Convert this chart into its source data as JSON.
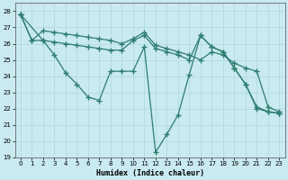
{
  "xlabel": "Humidex (Indice chaleur)",
  "bg_color": "#c8eaf0",
  "grid_color": "#b0d8d8",
  "line_color": "#2e7d6e",
  "marker": "+",
  "markersize": 4.0,
  "linewidth": 0.9,
  "xlim": [
    -0.5,
    23.5
  ],
  "ylim": [
    19,
    28.5
  ],
  "yticks": [
    19,
    20,
    21,
    22,
    23,
    24,
    25,
    26,
    27,
    28
  ],
  "xticks": [
    0,
    1,
    2,
    3,
    4,
    5,
    6,
    7,
    8,
    9,
    10,
    11,
    12,
    13,
    14,
    15,
    16,
    17,
    18,
    19,
    20,
    21,
    22,
    23
  ],
  "line1_x": [
    0,
    1,
    2,
    3,
    4,
    5,
    6,
    7,
    8,
    9,
    10,
    11,
    12,
    13,
    14,
    15,
    16,
    17,
    18,
    19,
    20,
    21,
    22,
    23
  ],
  "line1_y": [
    27.8,
    26.2,
    26.8,
    26.7,
    26.6,
    26.5,
    26.4,
    26.3,
    26.2,
    26.0,
    26.3,
    26.7,
    25.9,
    25.7,
    25.5,
    25.3,
    25.0,
    25.5,
    25.3,
    24.8,
    24.5,
    24.3,
    22.1,
    21.8
  ],
  "line2_x": [
    0,
    2,
    3,
    4,
    5,
    6,
    7,
    8,
    9,
    10,
    11,
    12,
    13,
    14,
    15,
    16,
    17,
    18,
    19,
    20,
    21,
    22,
    23
  ],
  "line2_y": [
    27.8,
    26.2,
    25.3,
    24.2,
    23.5,
    22.7,
    22.5,
    24.3,
    24.3,
    24.3,
    25.8,
    19.3,
    20.4,
    21.6,
    24.1,
    26.5,
    25.8,
    25.5,
    24.5,
    23.5,
    22.1,
    21.8,
    21.7
  ],
  "line3_x": [
    0,
    1,
    2,
    3,
    4,
    5,
    6,
    7,
    8,
    9,
    10,
    11,
    12,
    13,
    14,
    15,
    16,
    17,
    18,
    19,
    20,
    21,
    22,
    23
  ],
  "line3_y": [
    27.8,
    26.2,
    26.2,
    26.1,
    26.0,
    25.9,
    25.8,
    25.7,
    25.6,
    25.6,
    26.2,
    26.5,
    25.7,
    25.5,
    25.3,
    25.0,
    26.5,
    25.8,
    25.5,
    24.5,
    23.5,
    22.0,
    21.8,
    21.7
  ]
}
